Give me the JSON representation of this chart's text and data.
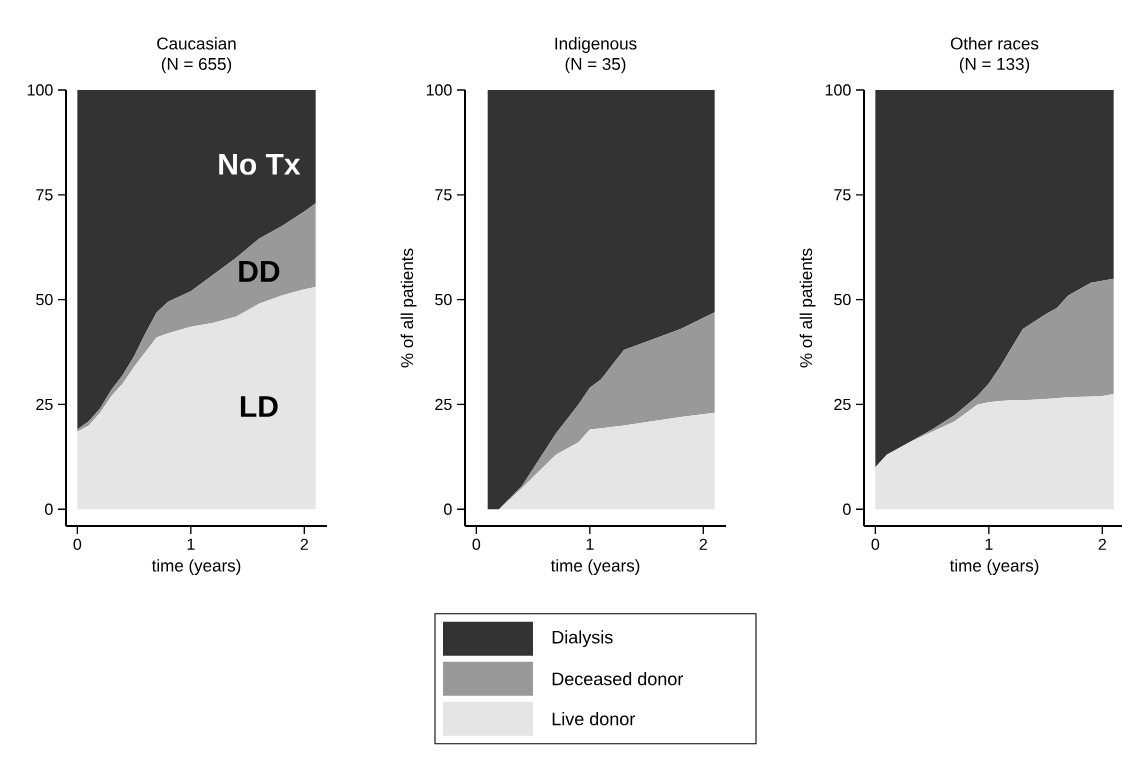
{
  "chart_data": [
    {
      "type": "area",
      "title": "Caucasian",
      "subtitle": "(N = 655)",
      "xlabel": "time (years)",
      "stacked": true,
      "legend": false,
      "x": [
        0,
        0.1,
        0.2,
        0.3,
        0.4,
        0.5,
        0.6,
        0.7,
        0.8,
        1.0,
        1.2,
        1.4,
        1.6,
        1.8,
        2.0,
        2.1
      ],
      "series": [
        {
          "color": "#e5e5e5",
          "values": [
            18.5,
            20,
            23,
            27,
            30,
            34,
            37.5,
            41,
            42,
            43.5,
            44.5,
            46,
            49,
            51,
            52.5,
            53
          ]
        },
        {
          "color": "#999999",
          "values": [
            0.5,
            1,
            1,
            1.5,
            2,
            2.5,
            4.5,
            6,
            7.5,
            8.5,
            11.5,
            14,
            15.5,
            16.5,
            18.5,
            20
          ]
        },
        {
          "color": "#333333",
          "values": [
            81,
            79,
            76,
            71.5,
            68,
            63.5,
            58,
            53,
            50.5,
            48,
            44,
            40,
            35.5,
            32.5,
            29,
            27
          ]
        }
      ],
      "xlim": [
        -0.1,
        2.2
      ],
      "ylim": [
        -4,
        100
      ],
      "xticks": [
        0,
        1,
        2
      ],
      "yticks": [
        0,
        25,
        50,
        75,
        100
      ],
      "annotations": [
        "No Tx",
        "DD",
        "LD"
      ]
    },
    {
      "type": "area",
      "title": "Indigenous",
      "subtitle": "(N = 35)",
      "xlabel": "time (years)",
      "ylabel": "% of all patients",
      "stacked": true,
      "legend": "bottom",
      "x": [
        0.1,
        0.2,
        0.4,
        0.7,
        0.9,
        1.0,
        1.1,
        1.3,
        1.8,
        2.1
      ],
      "series": [
        {
          "name": "Live donor",
          "color": "#e5e5e5",
          "values": [
            0,
            0,
            5,
            13,
            16,
            19,
            19.3,
            20,
            22,
            23
          ]
        },
        {
          "name": "Deceased donor",
          "color": "#999999",
          "values": [
            0,
            0,
            0.5,
            5,
            9,
            10,
            11.7,
            18,
            21,
            24
          ]
        },
        {
          "name": "Dialysis",
          "color": "#333333",
          "values": [
            100,
            100,
            94.5,
            82,
            75,
            71,
            69,
            62,
            57,
            53
          ]
        }
      ],
      "xlim": [
        -0.1,
        2.2
      ],
      "ylim": [
        -4,
        100
      ],
      "xticks": [
        0,
        1,
        2
      ],
      "yticks": [
        0,
        25,
        50,
        75,
        100
      ]
    },
    {
      "type": "area",
      "title": "Other races",
      "subtitle": "(N = 133)",
      "xlabel": "time (years)",
      "ylabel": "% of all patients",
      "stacked": true,
      "legend": false,
      "x": [
        0,
        0.1,
        0.3,
        0.5,
        0.7,
        0.9,
        1.0,
        1.1,
        1.2,
        1.3,
        1.5,
        1.6,
        1.7,
        1.9,
        2.0,
        2.1
      ],
      "series": [
        {
          "color": "#e5e5e5",
          "values": [
            10,
            13,
            16,
            18.5,
            21,
            25,
            25.5,
            25.8,
            26,
            26,
            26.3,
            26.5,
            26.7,
            26.9,
            27,
            27.5
          ]
        },
        {
          "color": "#999999",
          "values": [
            0,
            0,
            0,
            0.5,
            1.5,
            2,
            4.5,
            8.2,
            12.5,
            17,
            20.2,
            21.5,
            24.3,
            27.1,
            27.5,
            27.5
          ]
        },
        {
          "color": "#333333",
          "values": [
            90,
            87,
            84,
            81,
            77.5,
            73,
            70,
            66,
            61.5,
            57,
            53.5,
            52,
            49,
            46,
            45.5,
            45
          ]
        }
      ],
      "xlim": [
        -0.1,
        2.2
      ],
      "ylim": [
        -4,
        100
      ],
      "xticks": [
        0,
        1,
        2
      ],
      "yticks": [
        0,
        25,
        50,
        75,
        100
      ]
    }
  ]
}
